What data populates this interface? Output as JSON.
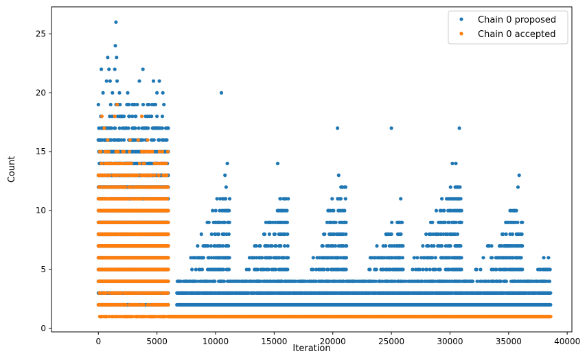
{
  "chart_data": {
    "type": "scatter",
    "title": "",
    "xlabel": "Iteration",
    "ylabel": "Count",
    "xlim": [
      -4000,
      40400
    ],
    "ylim": [
      -0.3,
      27.3
    ],
    "xticks": [
      0,
      5000,
      10000,
      15000,
      20000,
      25000,
      30000,
      35000,
      40000
    ],
    "xtick_labels": [
      "0",
      "5000",
      "10000",
      "15000",
      "20000",
      "25000",
      "30000",
      "35000",
      "40000"
    ],
    "yticks": [
      0,
      5,
      10,
      15,
      20,
      25
    ],
    "ytick_labels": [
      "0",
      "5",
      "10",
      "15",
      "20",
      "25"
    ],
    "legend_position": "top-right",
    "series": [
      {
        "name": "Chain 0 proposed",
        "color": "#1f77b4",
        "points": [
          [
            0,
            16
          ],
          [
            250,
            22
          ],
          [
            400,
            20
          ],
          [
            700,
            21
          ],
          [
            800,
            23
          ],
          [
            900,
            22
          ],
          [
            1000,
            21
          ],
          [
            1200,
            20
          ],
          [
            1400,
            22
          ],
          [
            1450,
            24
          ],
          [
            1500,
            26
          ],
          [
            1550,
            23
          ],
          [
            1600,
            21
          ],
          [
            1800,
            20
          ],
          [
            2500,
            20
          ],
          [
            3000,
            19
          ],
          [
            3500,
            21
          ],
          [
            3800,
            22
          ],
          [
            4300,
            19
          ],
          [
            4700,
            21
          ],
          [
            5000,
            20
          ],
          [
            5200,
            21
          ],
          [
            5500,
            20
          ],
          [
            10500,
            20
          ],
          [
            11000,
            14
          ],
          [
            10800,
            13
          ],
          [
            10900,
            12
          ],
          [
            15300,
            14
          ],
          [
            15500,
            11
          ],
          [
            20400,
            17
          ],
          [
            20700,
            12
          ],
          [
            20500,
            13
          ],
          [
            25000,
            17
          ],
          [
            25800,
            11
          ],
          [
            30200,
            14
          ],
          [
            30500,
            14
          ],
          [
            30800,
            17
          ],
          [
            30600,
            12
          ],
          [
            35800,
            12
          ],
          [
            35900,
            13
          ],
          [
            35500,
            10
          ],
          [
            38000,
            6
          ],
          [
            38400,
            6
          ],
          [
            37500,
            5
          ],
          [
            38200,
            5
          ]
        ],
        "clusters": [
          {
            "x_range": [
              0,
              6000
            ],
            "y_max": 19,
            "density": 0.95,
            "x_gap": [
              0,
              0
            ]
          },
          {
            "x_range": [
              6000,
              38600
            ],
            "y_max": 4,
            "density": 0.95,
            "x_gap": [
              0,
              0
            ]
          }
        ],
        "waves": [
          {
            "x_range": [
              7000,
              11200
            ],
            "peak_x": 10600,
            "peak_y": 11
          },
          {
            "x_range": [
              12000,
              16200
            ],
            "peak_x": 15600,
            "peak_y": 11
          },
          {
            "x_range": [
              17500,
              21200
            ],
            "peak_x": 20500,
            "peak_y": 12
          },
          {
            "x_range": [
              22000,
              26000
            ],
            "peak_x": 25200,
            "peak_y": 9
          },
          {
            "x_range": [
              26000,
              31000
            ],
            "peak_x": 30500,
            "peak_y": 12
          },
          {
            "x_range": [
              31500,
              36200
            ],
            "peak_x": 35700,
            "peak_y": 10
          },
          {
            "x_range": [
              36500,
              38600
            ],
            "peak_x": 38000,
            "peak_y": 5
          }
        ]
      },
      {
        "name": "Chain 0 accepted",
        "color": "#ff7f0e",
        "points": [
          [
            300,
            18
          ],
          [
            1400,
            18
          ],
          [
            1600,
            19
          ],
          [
            3700,
            18
          ],
          [
            500,
            17
          ],
          [
            800,
            16
          ],
          [
            2700,
            16
          ],
          [
            3400,
            16
          ],
          [
            4200,
            16
          ]
        ],
        "clusters": [
          {
            "x_range": [
              0,
              6000
            ],
            "y_max": 15,
            "density": 0.9,
            "x_gap": [
              0,
              0
            ]
          },
          {
            "x_range": [
              6000,
              38600
            ],
            "y_max": 1,
            "density": 1.0,
            "x_gap": [
              0,
              0
            ]
          }
        ]
      }
    ]
  }
}
